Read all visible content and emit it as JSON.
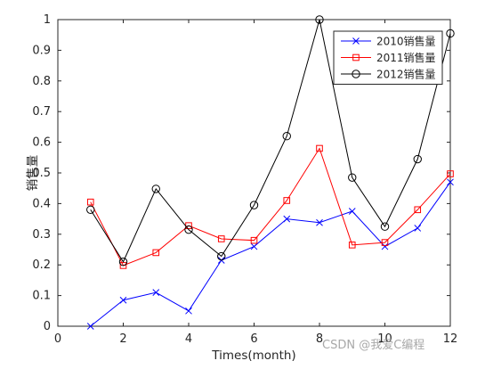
{
  "chart_data": {
    "type": "line",
    "xlabel": "Times(month)",
    "ylabel": "销售量",
    "xlim": [
      0,
      12
    ],
    "ylim": [
      0,
      1
    ],
    "xticks": [
      0,
      2,
      4,
      6,
      8,
      10,
      12
    ],
    "yticks": [
      0,
      0.1,
      0.2,
      0.3,
      0.4,
      0.5,
      0.6,
      0.7,
      0.8,
      0.9,
      1
    ],
    "grid": false,
    "legend_position": "top-right",
    "x": [
      1,
      2,
      3,
      4,
      5,
      6,
      7,
      8,
      9,
      10,
      11,
      12
    ],
    "series": [
      {
        "name": "2010销售量",
        "color": "#0000ff",
        "marker": "x",
        "values": [
          0.0,
          0.085,
          0.11,
          0.05,
          0.215,
          0.26,
          0.35,
          0.338,
          0.375,
          0.26,
          0.32,
          0.47
        ]
      },
      {
        "name": "2011销售量",
        "color": "#ff0000",
        "marker": "square",
        "values": [
          0.405,
          0.198,
          0.24,
          0.328,
          0.285,
          0.28,
          0.41,
          0.58,
          0.265,
          0.273,
          0.38,
          0.497
        ]
      },
      {
        "name": "2012销售量",
        "color": "#000000",
        "marker": "circle",
        "values": [
          0.38,
          0.21,
          0.448,
          0.315,
          0.228,
          0.395,
          0.62,
          1.0,
          0.485,
          0.325,
          0.545,
          0.955
        ]
      }
    ]
  },
  "watermark": "CSDN @我爱C编程"
}
